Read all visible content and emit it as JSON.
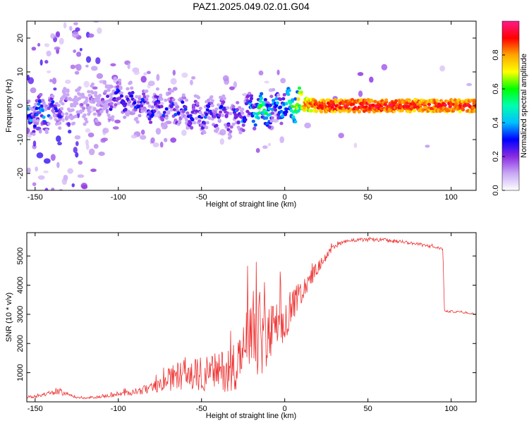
{
  "title": "PAZ1.2025.049.02.01.G04",
  "chart_data": [
    {
      "type": "heatmap",
      "xlabel": "Height of straight line (km)",
      "ylabel": "Frequency (Hz)",
      "xlim": [
        -155,
        115
      ],
      "ylim": [
        -25,
        25
      ],
      "xticks": [
        -150,
        -100,
        -50,
        0,
        50,
        100
      ],
      "yticks": [
        -20,
        -10,
        0,
        10,
        20
      ],
      "colorbar": {
        "label": "Normalized spectral amplitude",
        "range": [
          0,
          1
        ],
        "ticks": [
          0.0,
          0.2,
          0.4,
          0.6,
          0.8
        ],
        "colormap": [
          "#ffffff",
          "#c9a8f5",
          "#8a2be2",
          "#0000ff",
          "#00bfff",
          "#00ffb0",
          "#00ff00",
          "#ffff00",
          "#ffa500",
          "#ff0000",
          "#ff1a8c"
        ]
      },
      "ridge": {
        "x": [
          -152,
          -145,
          -135,
          -125,
          -110,
          -100,
          -90,
          -80,
          -70,
          -60,
          -50,
          -40,
          -30,
          -20,
          -15,
          -10,
          -5,
          0,
          5,
          10,
          20,
          50,
          80,
          110,
          115
        ],
        "freq": [
          -3,
          -2,
          -1,
          0,
          1,
          2,
          1,
          -1,
          0,
          -2,
          -3,
          -2,
          -4,
          -1,
          -2,
          -1,
          0,
          0,
          1,
          0.5,
          0,
          0,
          0,
          0,
          0
        ],
        "amplitude": [
          0.4,
          0.4,
          0.2,
          0.1,
          0.2,
          0.3,
          0.3,
          0.3,
          0.3,
          0.3,
          0.3,
          0.3,
          0.3,
          0.4,
          0.6,
          0.5,
          0.4,
          0.5,
          0.6,
          0.8,
          0.9,
          0.95,
          0.9,
          0.9,
          0.9
        ]
      }
    },
    {
      "type": "line",
      "xlabel": "Height of straight line (km)",
      "ylabel": "SNR (10 * v/v)",
      "xlim": [
        -155,
        115
      ],
      "ylim": [
        0,
        5800
      ],
      "xticks": [
        -150,
        -100,
        -50,
        0,
        50,
        100
      ],
      "yticks": [
        1000,
        2000,
        3000,
        4000,
        5000
      ],
      "color": "#ee3333",
      "series": [
        {
          "x": [
            -155,
            -150,
            -145,
            -140,
            -135,
            -130,
            -125,
            -120,
            -115,
            -110,
            -105,
            -100,
            -95,
            -90,
            -85,
            -80,
            -75,
            -70,
            -65,
            -60,
            -55,
            -50,
            -45,
            -40,
            -35,
            -30,
            -25,
            -20,
            -15,
            -10,
            -5,
            0,
            5,
            10,
            15,
            20,
            25,
            30,
            35,
            40,
            45,
            50,
            55,
            60,
            65,
            70,
            75,
            80,
            85,
            90,
            95,
            96,
            100,
            105,
            110,
            115
          ],
          "y": [
            150,
            200,
            250,
            300,
            350,
            250,
            150,
            120,
            150,
            180,
            220,
            250,
            300,
            350,
            400,
            450,
            550,
            750,
            900,
            950,
            900,
            950,
            1000,
            1050,
            1100,
            1300,
            1600,
            2000,
            2300,
            2200,
            2600,
            2400,
            3300,
            3800,
            4200,
            4600,
            5000,
            5300,
            5500,
            5550,
            5550,
            5550,
            5550,
            5550,
            5500,
            5500,
            5450,
            5400,
            5350,
            5300,
            5250,
            3100,
            3100,
            3080,
            3050,
            3000
          ],
          "noise": [
            80,
            100,
            120,
            150,
            180,
            100,
            60,
            50,
            60,
            80,
            100,
            120,
            150,
            200,
            250,
            300,
            400,
            650,
            800,
            900,
            950,
            1000,
            1050,
            1100,
            1300,
            1500,
            1800,
            2400,
            2600,
            2000,
            1400,
            1200,
            900,
            700,
            500,
            350,
            250,
            150,
            120,
            100,
            100,
            100,
            100,
            100,
            100,
            100,
            90,
            90,
            80,
            80,
            80,
            60,
            60,
            60,
            60,
            60
          ]
        }
      ]
    }
  ]
}
